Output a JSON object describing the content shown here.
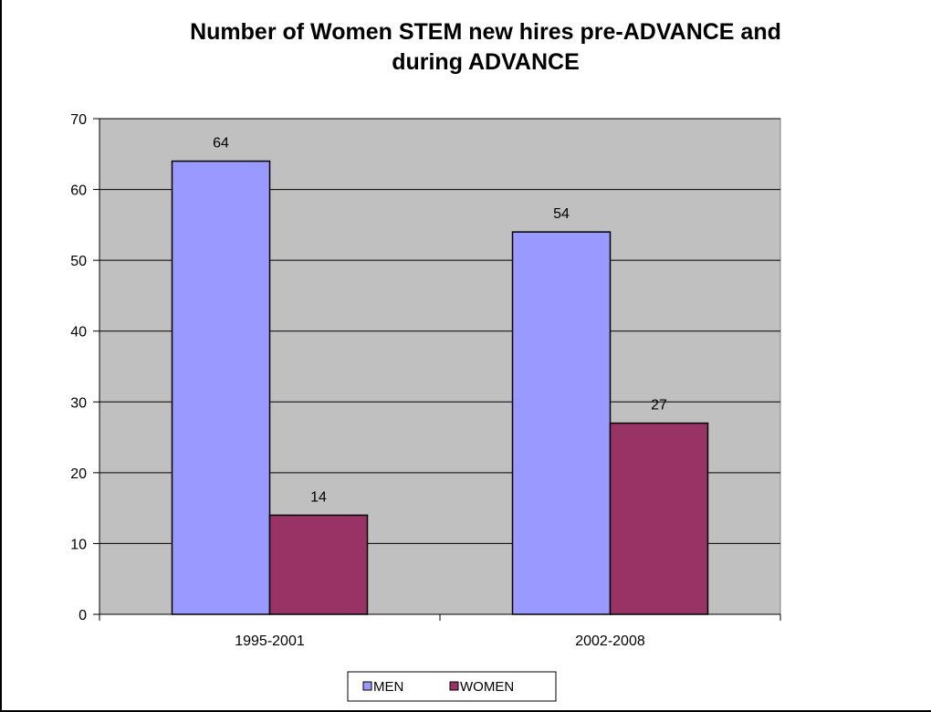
{
  "chart_data": {
    "type": "bar",
    "title_lines": [
      "Number of Women STEM new hires pre-ADVANCE and",
      "during ADVANCE"
    ],
    "xlabel": "",
    "ylabel": "",
    "categories": [
      "1995-2001",
      "2002-2008"
    ],
    "series": [
      {
        "name": "MEN",
        "values": [
          64,
          54
        ],
        "color": "#9999ff"
      },
      {
        "name": "WOMEN",
        "values": [
          14,
          27
        ],
        "color": "#993366"
      }
    ],
    "ylim": [
      0,
      70
    ],
    "yticks": [
      0,
      10,
      20,
      30,
      40,
      50,
      60,
      70
    ],
    "grid": true,
    "plot_background": "#c0c0c0",
    "legend_position": "bottom"
  }
}
